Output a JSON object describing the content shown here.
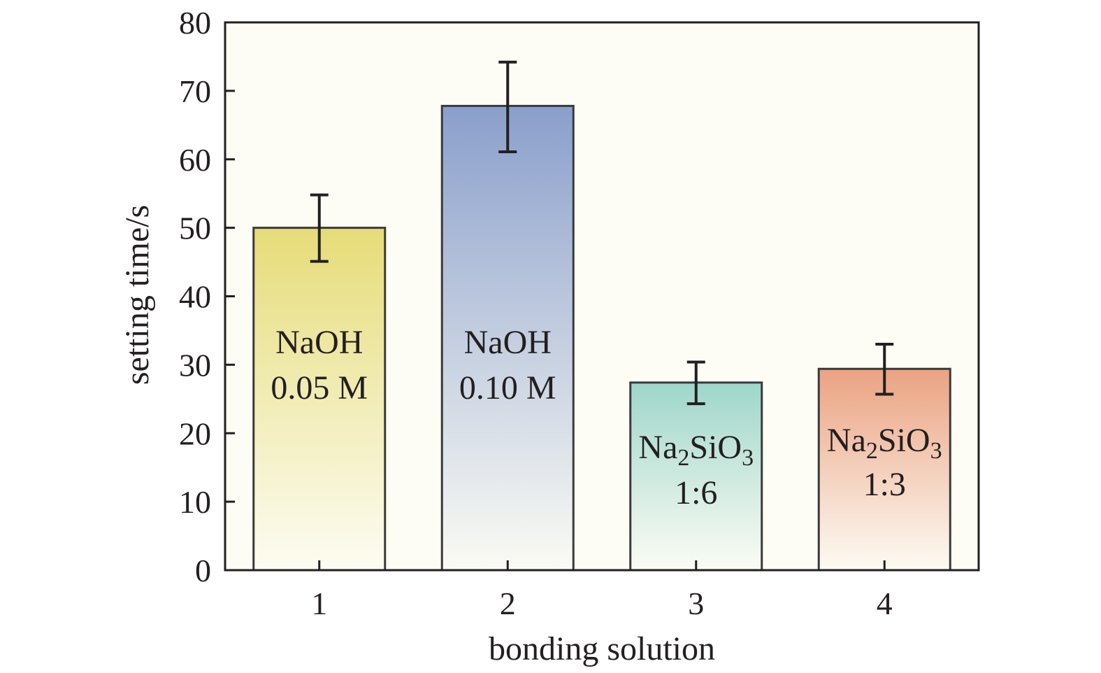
{
  "chart_data": {
    "type": "bar",
    "categories": [
      "1",
      "2",
      "3",
      "4"
    ],
    "values": [
      50.0,
      67.8,
      27.4,
      29.4
    ],
    "error_low": [
      45.1,
      61.1,
      24.3,
      25.7
    ],
    "error_high": [
      54.8,
      74.2,
      30.4,
      33.0
    ],
    "bar_labels": [
      {
        "line1": "NaOH",
        "line2": "0.05 M"
      },
      {
        "line1": "NaOH",
        "line2": "0.10 M"
      },
      {
        "line1": "Na",
        "sub1": "2",
        "line1b": "SiO",
        "sub2": "3",
        "line2": "1:6"
      },
      {
        "line1": "Na",
        "sub1": "2",
        "line1b": "SiO",
        "sub2": "3",
        "line2": "1:3"
      }
    ],
    "xlabel": "bonding solution",
    "ylabel": "setting time/s",
    "ylim": [
      0,
      80
    ],
    "yticks": [
      0,
      10,
      20,
      30,
      40,
      50,
      60,
      70,
      80
    ],
    "colors": [
      "#e6dc78",
      "#8a9fcb",
      "#9fd6ca",
      "#eba282"
    ],
    "plot_background": "#fdfdf5",
    "grid": false,
    "legend": "none"
  }
}
